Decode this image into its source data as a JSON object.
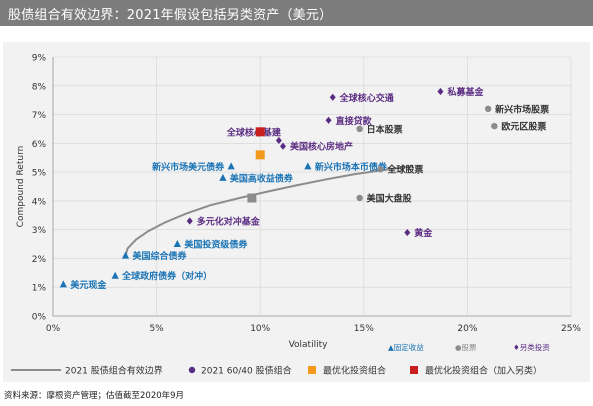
{
  "header": {
    "title": "股债组合有效边界：2021年假设包括另类资产（美元）"
  },
  "source_note": "资料来源：摩根资产管理；估值截至2020年9月",
  "colors": {
    "banner": "#7c7c7c",
    "panel": "#f2f2f2",
    "fixed_income": "#1a73b5",
    "equity": "#8c8c8c",
    "alternative": "#5b2c83",
    "frontier": "#8c8c8c",
    "optimal": "#f39a1e",
    "optimal_alt": "#c81e1e"
  },
  "chart_data": {
    "type": "scatter",
    "xlabel": "Volatility",
    "ylabel": "Compound Return",
    "xlim": [
      0,
      25
    ],
    "ylim": [
      0,
      9
    ],
    "x_ticks": [
      "0%",
      "5%",
      "10%",
      "15%",
      "20%",
      "25%"
    ],
    "y_ticks": [
      "0%",
      "1%",
      "2%",
      "3%",
      "4%",
      "5%",
      "6%",
      "7%",
      "8%",
      "9%"
    ],
    "grid": true,
    "inline_legend": [
      "▲固定收益",
      "●股票",
      "♦另类投资"
    ],
    "legend": [
      {
        "label": "2021 股债组合有效边界",
        "marker": "line"
      },
      {
        "label": "2021 60/40 股债组合",
        "marker": "circle"
      },
      {
        "label": "最优化投资组合",
        "marker": "square"
      },
      {
        "label": "最优化投资组合（加入另类）",
        "marker": "square"
      }
    ],
    "frontier": [
      [
        3.5,
        2.1
      ],
      [
        3.6,
        2.35
      ],
      [
        4.0,
        2.65
      ],
      [
        4.6,
        2.95
      ],
      [
        5.4,
        3.25
      ],
      [
        6.4,
        3.55
      ],
      [
        7.6,
        3.85
      ],
      [
        9.0,
        4.1
      ],
      [
        10.4,
        4.33
      ],
      [
        11.8,
        4.55
      ],
      [
        13.2,
        4.75
      ],
      [
        14.5,
        4.92
      ],
      [
        15.7,
        5.05
      ],
      [
        16.8,
        5.15
      ],
      [
        17.4,
        5.2
      ]
    ],
    "portfolio_6040": {
      "x": 9.6,
      "y": 4.1
    },
    "optimal": {
      "x": 10.0,
      "y": 5.6
    },
    "optimal_alt": {
      "x": 10.0,
      "y": 6.4
    },
    "fixed_income": [
      {
        "name": "美元现金",
        "x": 0.5,
        "y": 1.1
      },
      {
        "name": "全球政府债券（对冲）",
        "x": 3.0,
        "y": 1.4
      },
      {
        "name": "美国综合债券",
        "x": 3.5,
        "y": 2.1
      },
      {
        "name": "美国投资级债券",
        "x": 6.0,
        "y": 2.5
      },
      {
        "name": "美国高收益债券",
        "x": 8.2,
        "y": 4.8
      },
      {
        "name": "新兴市场美元债券",
        "x": 8.6,
        "y": 5.2
      },
      {
        "name": "新兴市场本币债券",
        "x": 12.3,
        "y": 5.2
      }
    ],
    "equity": [
      {
        "name": "新兴市场股票",
        "x": 21.0,
        "y": 7.2
      },
      {
        "name": "欧元区股票",
        "x": 21.3,
        "y": 6.6
      },
      {
        "name": "日本股票",
        "x": 14.8,
        "y": 6.5
      },
      {
        "name": "全球股票",
        "x": 15.8,
        "y": 5.1
      },
      {
        "name": "美国大盘股",
        "x": 14.8,
        "y": 4.1
      }
    ],
    "alternative": [
      {
        "name": "私募基金",
        "x": 18.7,
        "y": 7.8
      },
      {
        "name": "全球核心交通",
        "x": 13.5,
        "y": 7.6
      },
      {
        "name": "直接贷款",
        "x": 13.3,
        "y": 6.8
      },
      {
        "name": "全球核心基建",
        "x": 10.9,
        "y": 6.1
      },
      {
        "name": "美国核心房地产",
        "x": 11.1,
        "y": 5.9
      },
      {
        "name": "多元化对冲基金",
        "x": 6.6,
        "y": 3.3
      },
      {
        "name": "黄金",
        "x": 17.1,
        "y": 2.9
      }
    ]
  }
}
